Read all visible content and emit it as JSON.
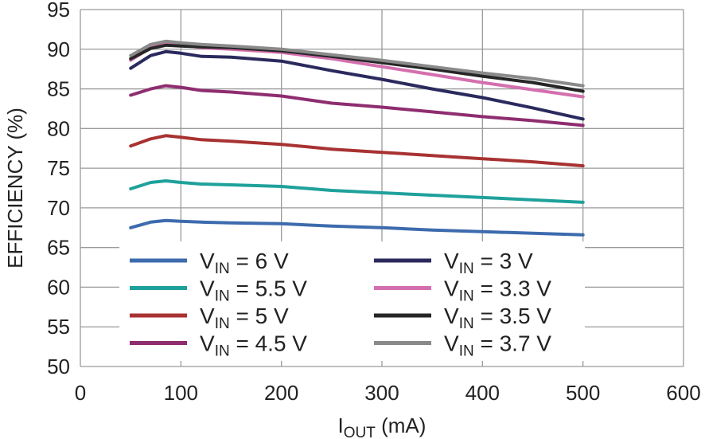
{
  "chart_data": {
    "type": "line",
    "xlabel": {
      "main": "I",
      "sub": "OUT",
      "suffix": " (mA)"
    },
    "ylabel": "EFFICIENCY (%)",
    "xlim": [
      0,
      600
    ],
    "ylim": [
      50,
      95
    ],
    "xticks": [
      0,
      100,
      200,
      300,
      400,
      500,
      600
    ],
    "yticks": [
      50,
      55,
      60,
      65,
      70,
      75,
      80,
      85,
      90,
      95
    ],
    "grid": true,
    "legend_position": "bottom-center, two columns",
    "x": [
      50,
      70,
      85,
      100,
      120,
      150,
      200,
      250,
      300,
      350,
      400,
      450,
      500
    ],
    "series": [
      {
        "name": "V_IN = 6 V",
        "label": {
          "main": "V",
          "sub": "IN",
          "rest": " = 6 V"
        },
        "color": "#3d6bad",
        "values": [
          67.5,
          68.2,
          68.4,
          68.3,
          68.2,
          68.1,
          68.0,
          67.7,
          67.5,
          67.2,
          67.0,
          66.8,
          66.6
        ]
      },
      {
        "name": "V_IN = 5.5 V",
        "label": {
          "main": "V",
          "sub": "IN",
          "rest": " = 5.5 V"
        },
        "color": "#1fa19b",
        "values": [
          72.4,
          73.2,
          73.4,
          73.2,
          73.0,
          72.9,
          72.7,
          72.2,
          71.9,
          71.6,
          71.3,
          71.0,
          70.7
        ]
      },
      {
        "name": "V_IN = 5 V",
        "label": {
          "main": "V",
          "sub": "IN",
          "rest": " = 5 V"
        },
        "color": "#a83232",
        "values": [
          77.8,
          78.7,
          79.1,
          78.9,
          78.6,
          78.4,
          78.0,
          77.4,
          77.0,
          76.6,
          76.2,
          75.8,
          75.3
        ]
      },
      {
        "name": "V_IN = 4.5 V",
        "label": {
          "main": "V",
          "sub": "IN",
          "rest": " = 4.5 V"
        },
        "color": "#8e2d6f",
        "values": [
          84.2,
          85.0,
          85.4,
          85.2,
          84.8,
          84.6,
          84.1,
          83.2,
          82.7,
          82.1,
          81.5,
          81.0,
          80.4
        ]
      },
      {
        "name": "V_IN = 3 V",
        "label": {
          "main": "V",
          "sub": "IN",
          "rest": " = 3 V"
        },
        "color": "#2b2a5e",
        "values": [
          87.6,
          89.2,
          89.7,
          89.5,
          89.1,
          89.0,
          88.5,
          87.3,
          86.2,
          85.0,
          83.9,
          82.6,
          81.2
        ]
      },
      {
        "name": "V_IN = 3.3 V",
        "label": {
          "main": "V",
          "sub": "IN",
          "rest": " = 3.3 V"
        },
        "color": "#d46fae",
        "values": [
          88.6,
          90.2,
          90.9,
          90.6,
          90.2,
          90.0,
          89.6,
          88.8,
          87.8,
          86.8,
          85.8,
          84.9,
          84.0
        ]
      },
      {
        "name": "V_IN = 3.5 V",
        "label": {
          "main": "V",
          "sub": "IN",
          "rest": " = 3.5 V"
        },
        "color": "#262626",
        "values": [
          88.8,
          90.1,
          90.5,
          90.4,
          90.3,
          90.2,
          89.8,
          89.1,
          88.3,
          87.5,
          86.6,
          85.8,
          84.7
        ]
      },
      {
        "name": "V_IN = 3.7 V",
        "label": {
          "main": "V",
          "sub": "IN",
          "rest": " = 3.7 V"
        },
        "color": "#8a8a8a",
        "values": [
          89.2,
          90.6,
          91.0,
          90.8,
          90.6,
          90.4,
          90.0,
          89.3,
          88.6,
          87.8,
          87.0,
          86.3,
          85.4
        ]
      }
    ]
  }
}
